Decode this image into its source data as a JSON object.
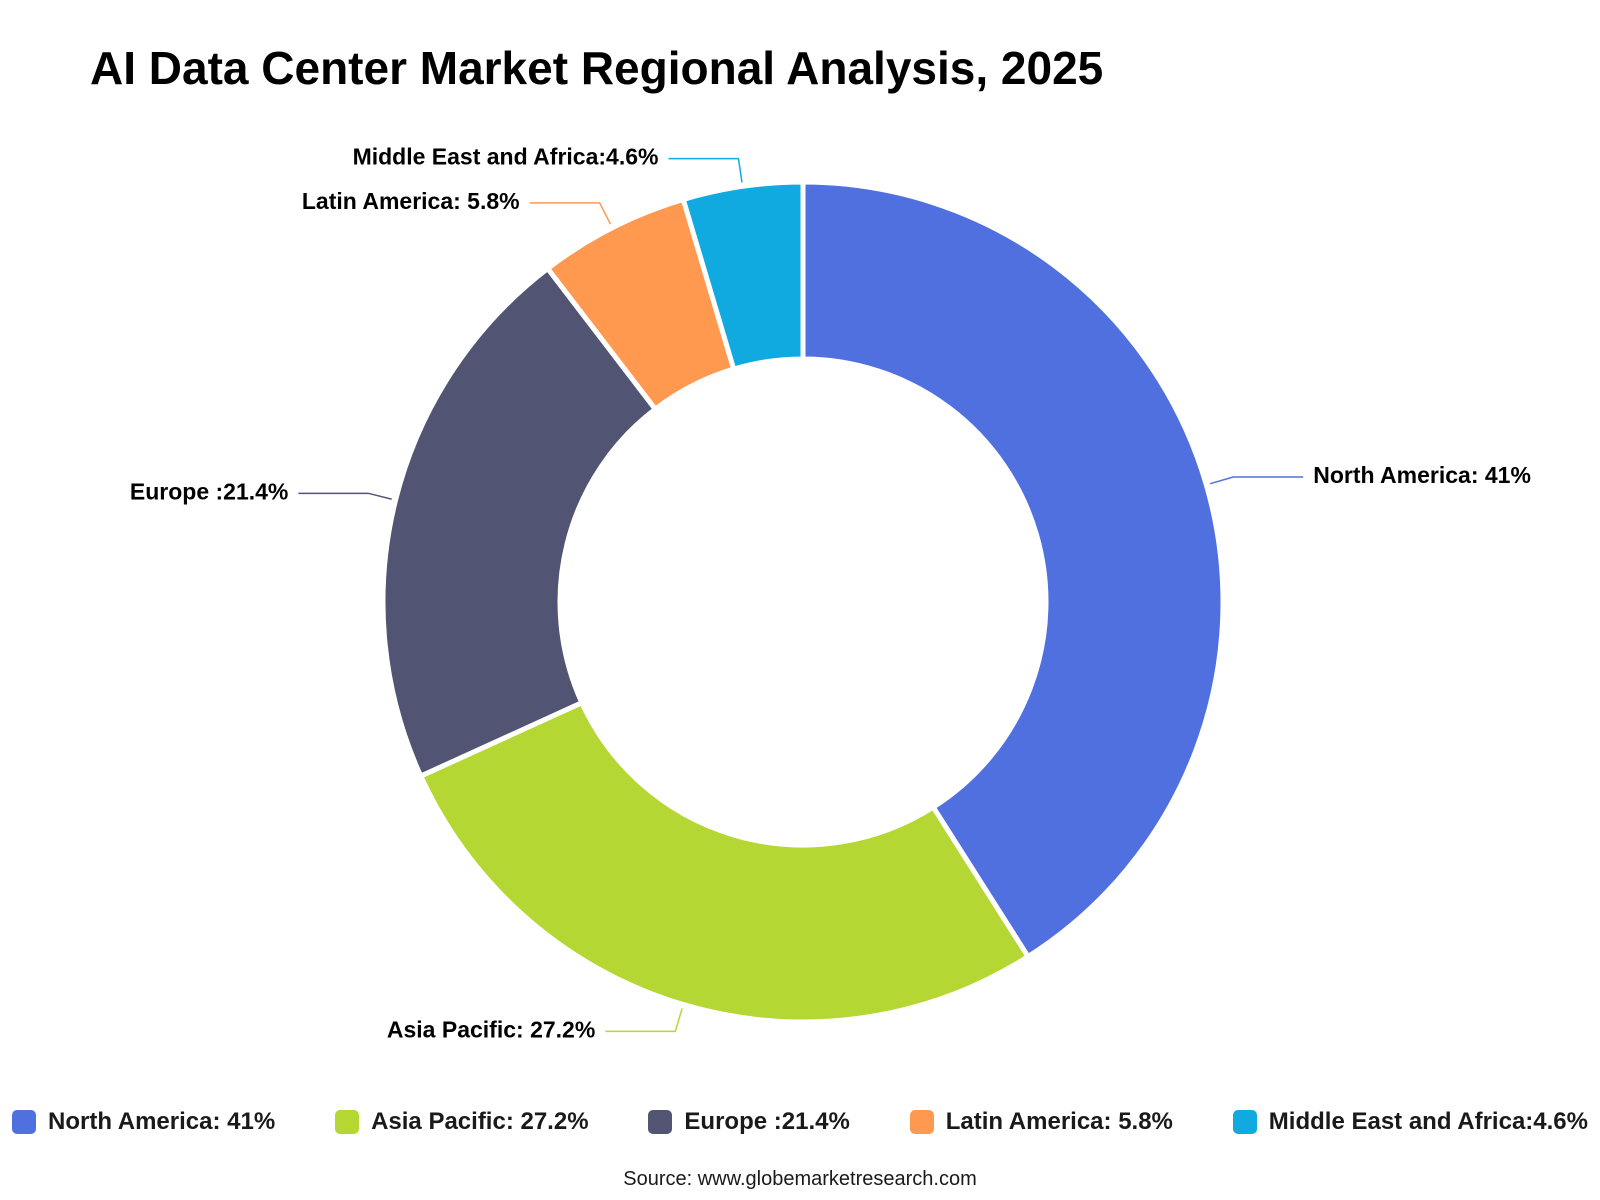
{
  "chart_data": {
    "type": "donut",
    "title": "AI Data Center Market Regional Analysis, 2025",
    "categories": [
      "North America: 41%",
      "Asia Pacific: 27.2%",
      "Europe :21.4%",
      "Latin America: 5.8%",
      "Middle East and Africa:4.6%"
    ],
    "values": [
      41,
      27.2,
      21.4,
      5.8,
      4.6
    ],
    "colors": [
      "#5170e0",
      "#b5d733",
      "#515472",
      "#fe994f",
      "#10a9e0"
    ],
    "source": "Source: www.globemarketresearch.com"
  }
}
